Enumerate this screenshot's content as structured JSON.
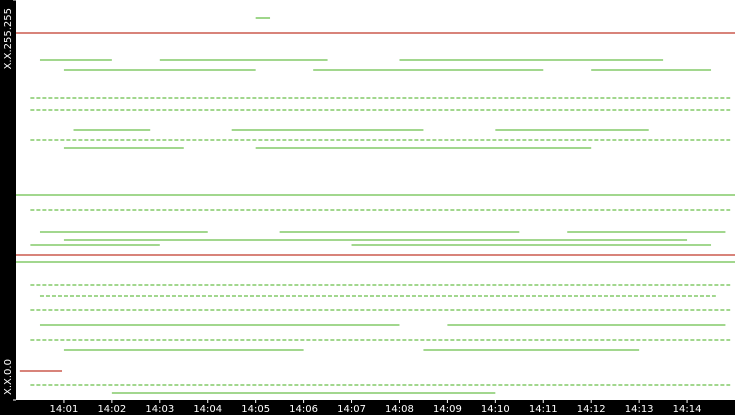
{
  "chart_data": {
    "type": "timeline",
    "xlim": [
      840,
      855
    ],
    "xticks": [
      {
        "value": 841,
        "label": "14:01"
      },
      {
        "value": 842,
        "label": "14:02"
      },
      {
        "value": 843,
        "label": "14:03"
      },
      {
        "value": 844,
        "label": "14:04"
      },
      {
        "value": 845,
        "label": "14:05"
      },
      {
        "value": 846,
        "label": "14:06"
      },
      {
        "value": 847,
        "label": "14:07"
      },
      {
        "value": 848,
        "label": "14:08"
      },
      {
        "value": 849,
        "label": "14:09"
      },
      {
        "value": 850,
        "label": "14:10"
      },
      {
        "value": 851,
        "label": "14:11"
      },
      {
        "value": 852,
        "label": "14:12"
      },
      {
        "value": 853,
        "label": "14:13"
      },
      {
        "value": 854,
        "label": "14:14"
      }
    ],
    "ylim": [
      0,
      65535
    ],
    "yticks": [
      {
        "value": 65535,
        "label": "X.X.255.255"
      },
      {
        "value": 0,
        "label": "X.X.0.0"
      }
    ],
    "series": [
      {
        "color": "#6abf4b",
        "y": [
          55706,
          55706,
          55706,
          54067,
          54067,
          54067,
          49480,
          47514,
          44237,
          44237,
          44237,
          42598,
          41288,
          41288,
          31130,
          27525,
          27525,
          27525,
          26214,
          25395,
          25395,
          18842,
          17039,
          14746,
          12288,
          12288,
          9830,
          8192,
          8192,
          2458,
          1147,
          62586,
          33587,
          22609
        ],
        "x_start": [
          840.5,
          843.0,
          848.0,
          841.0,
          846.2,
          852.0,
          840.3,
          840.3,
          841.2,
          844.5,
          850.0,
          840.3,
          841.0,
          845.0,
          840.3,
          840.5,
          845.5,
          851.5,
          841.0,
          840.3,
          847.0,
          840.3,
          840.5,
          840.3,
          840.5,
          849.0,
          840.3,
          841.0,
          848.5,
          840.3,
          842.0,
          845.0,
          840,
          840
        ],
        "x_end": [
          842.0,
          846.5,
          853.5,
          845.0,
          851.0,
          854.5,
          854.9,
          854.9,
          842.8,
          848.5,
          853.2,
          854.9,
          843.5,
          852.0,
          854.9,
          844.0,
          850.5,
          854.8,
          854.0,
          843.0,
          854.5,
          854.9,
          854.6,
          854.9,
          848.0,
          854.8,
          854.9,
          846.0,
          853.0,
          854.9,
          850.0,
          845.3,
          855,
          855
        ]
      },
      {
        "color": "#c0392b",
        "y": [
          60128,
          23756,
          4751
        ],
        "x_start": [
          840,
          840,
          840.08
        ],
        "x_end": [
          855,
          855,
          840.96
        ]
      }
    ]
  }
}
